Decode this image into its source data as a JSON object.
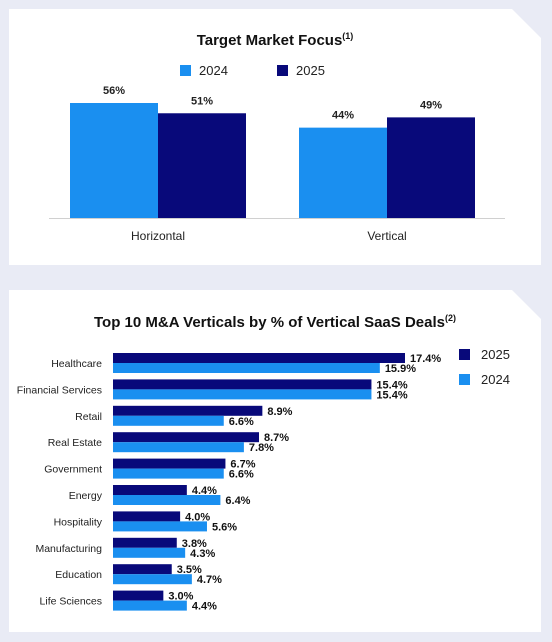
{
  "charts": {
    "top": {
      "title": "Target Market Focus",
      "title_note": "(1)"
    },
    "bottom": {
      "title": "Top 10 M&A Verticals by % of Vertical SaaS Deals",
      "title_note": "(2)"
    }
  },
  "chart_data": [
    {
      "type": "bar",
      "orientation": "vertical",
      "title": "Target Market Focus(1)",
      "categories": [
        "Horizontal",
        "Vertical"
      ],
      "series": [
        {
          "name": "2024",
          "values": [
            56,
            44
          ],
          "labels": [
            "56%",
            "44%"
          ],
          "color": "#1a8ff0"
        },
        {
          "name": "2025",
          "values": [
            51,
            49
          ],
          "labels": [
            "51%",
            "49%"
          ],
          "color": "#08097a"
        }
      ],
      "ylim": [
        0,
        60
      ],
      "unit": "%",
      "grid": false,
      "legend": "top"
    },
    {
      "type": "bar",
      "orientation": "horizontal",
      "title": "Top 10 M&A Verticals by % of Vertical SaaS Deals(2)",
      "categories": [
        "Healthcare",
        "Financial Services",
        "Retail",
        "Real Estate",
        "Government",
        "Energy",
        "Hospitality",
        "Manufacturing",
        "Education",
        "Life Sciences"
      ],
      "series": [
        {
          "name": "2025",
          "values": [
            17.4,
            15.4,
            8.9,
            8.7,
            6.7,
            4.4,
            4.0,
            3.8,
            3.5,
            3.0
          ],
          "labels": [
            "17.4%",
            "15.4%",
            "8.9%",
            "8.7%",
            "6.7%",
            "4.4%",
            "4.0%",
            "3.8%",
            "3.5%",
            "3.0%"
          ],
          "color": "#08097a"
        },
        {
          "name": "2024",
          "values": [
            15.9,
            15.4,
            6.6,
            7.8,
            6.6,
            6.4,
            5.6,
            4.3,
            4.7,
            4.4
          ],
          "labels": [
            "15.9%",
            "15.4%",
            "6.6%",
            "7.8%",
            "6.6%",
            "6.4%",
            "5.6%",
            "4.3%",
            "4.7%",
            "4.4%"
          ],
          "color": "#1a8ff0"
        }
      ],
      "xlim": [
        0,
        17.4
      ],
      "unit": "%",
      "grid": false,
      "legend": "right"
    }
  ]
}
